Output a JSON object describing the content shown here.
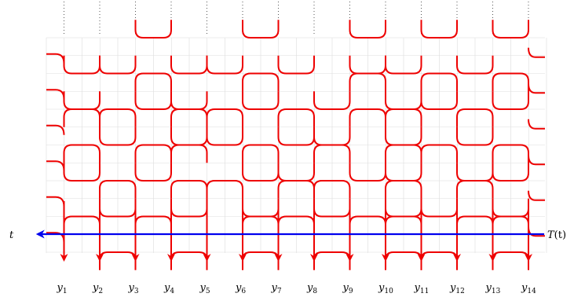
{
  "labels": {
    "left": "t",
    "right_main": "T",
    "right_paren": "(t)",
    "bottom_prefix": "y",
    "bottom_subscripts": [
      "1",
      "2",
      "3",
      "4",
      "5",
      "6",
      "7",
      "8",
      "9",
      "10",
      "11",
      "12",
      "13",
      "14"
    ]
  },
  "colors": {
    "curves": "#ee0000",
    "axis": "#0000ee",
    "grid": "#dddddd",
    "dots": "#555555"
  },
  "strands": 14,
  "tile_rows": [
    [
      0,
      0,
      1,
      0,
      0,
      1,
      0,
      0,
      1,
      0,
      1,
      0,
      1,
      0
    ],
    [
      1,
      1,
      0,
      1,
      1,
      0,
      1,
      0,
      1,
      1,
      0,
      1,
      0,
      1
    ],
    [
      1,
      0,
      1,
      1,
      0,
      1,
      0,
      1,
      0,
      1,
      1,
      0,
      1,
      1
    ],
    [
      0,
      1,
      0,
      1,
      1,
      0,
      1,
      1,
      0,
      1,
      0,
      1,
      0,
      1
    ],
    [
      1,
      0,
      1,
      0,
      0,
      1,
      1,
      0,
      1,
      1,
      0,
      1,
      1,
      0
    ],
    [
      0,
      1,
      0,
      1,
      0,
      1,
      0,
      1,
      0,
      1,
      1,
      0,
      1,
      1
    ]
  ]
}
